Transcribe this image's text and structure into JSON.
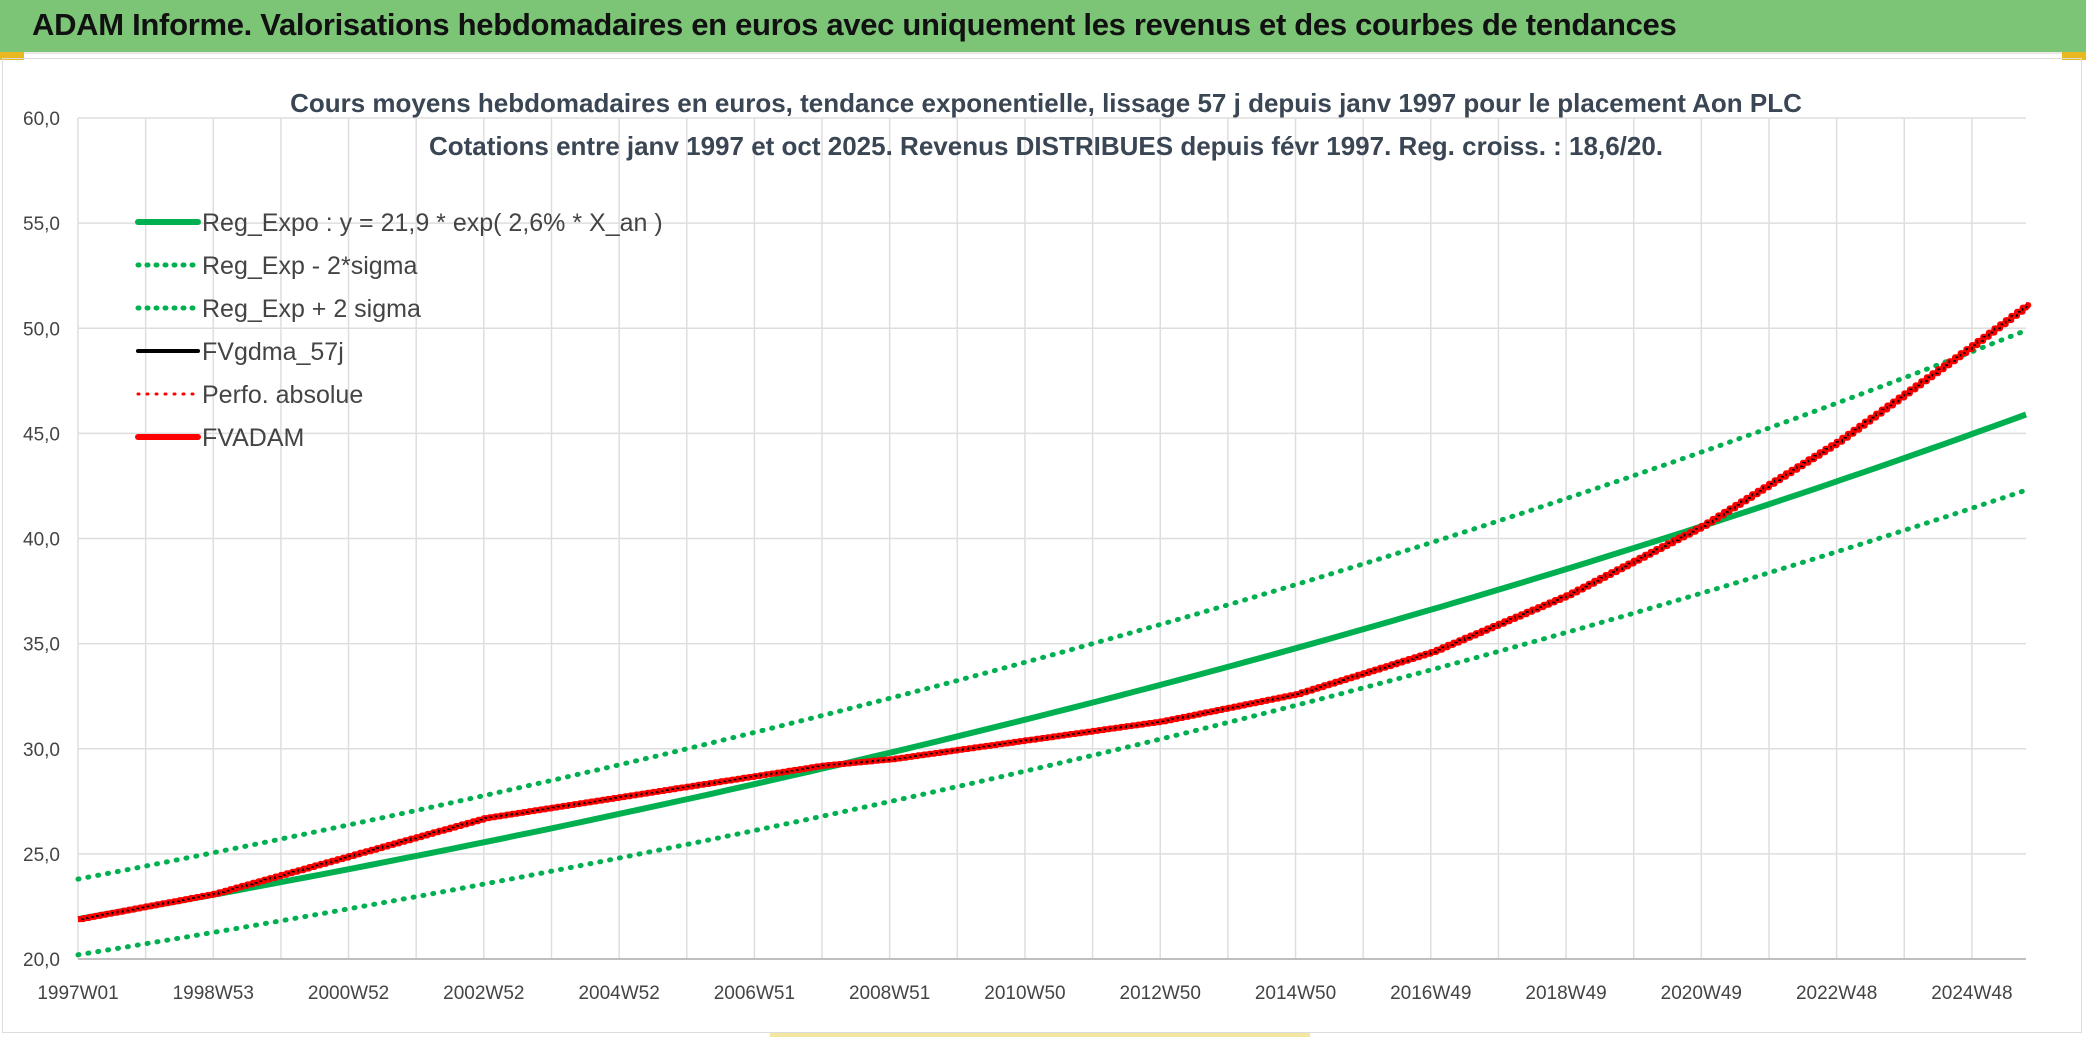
{
  "header": {
    "title": "ADAM Informe. Valorisations hebdomadaires en euros avec uniquement les revenus et des courbes de tendances"
  },
  "colors": {
    "header_bg": "#7cc576",
    "trend": "#00b050",
    "perf": "#ff0000",
    "gdma": "#000000"
  },
  "chart_data": {
    "type": "line",
    "title": "Cours moyens hebdomadaires en euros, tendance exponentielle, lissage 57 j depuis janv 1997 pour le placement Aon PLC",
    "subtitle": "Cotations entre janv 1997 et oct 2025. Revenus DISTRIBUES depuis févr 1997. Reg. croiss. : 18,6/20.",
    "xlabel": "",
    "ylabel": "",
    "x_start_year": 1997.0,
    "x_end_year": 2025.8,
    "x_ticks": [
      {
        "label": "1997W01",
        "year": 1997.0
      },
      {
        "label": "1998W53",
        "year": 1999.0
      },
      {
        "label": "2000W52",
        "year": 2001.0
      },
      {
        "label": "2002W52",
        "year": 2003.0
      },
      {
        "label": "2004W52",
        "year": 2005.0
      },
      {
        "label": "2006W51",
        "year": 2007.0
      },
      {
        "label": "2008W51",
        "year": 2009.0
      },
      {
        "label": "2010W50",
        "year": 2011.0
      },
      {
        "label": "2012W50",
        "year": 2013.0
      },
      {
        "label": "2014W50",
        "year": 2015.0
      },
      {
        "label": "2016W49",
        "year": 2017.0
      },
      {
        "label": "2018W49",
        "year": 2019.0
      },
      {
        "label": "2020W49",
        "year": 2021.0
      },
      {
        "label": "2022W48",
        "year": 2023.0
      },
      {
        "label": "2024W48",
        "year": 2025.0
      }
    ],
    "ylim": [
      20,
      60
    ],
    "y_ticks": [
      "20,0",
      "25,0",
      "30,0",
      "35,0",
      "40,0",
      "45,0",
      "50,0",
      "55,0",
      "60,0"
    ],
    "legend": [
      {
        "label": "Reg_Expo : y = 21,9 * exp( 2,6% *  X_an )",
        "color": "#00b050",
        "style": "solid",
        "width": 6
      },
      {
        "label": "Reg_Exp - 2*sigma",
        "color": "#00b050",
        "style": "dotted",
        "width": 5
      },
      {
        "label": "Reg_Exp + 2 sigma",
        "color": "#00b050",
        "style": "dotted",
        "width": 5
      },
      {
        "label": "FVgdma_57j",
        "color": "#000000",
        "style": "solid",
        "width": 4
      },
      {
        "label": "Perfo. absolue",
        "color": "#ff0000",
        "style": "dotted",
        "width": 3
      },
      {
        "label": "FVADAM",
        "color": "#ff0000",
        "style": "solid",
        "width": 6
      }
    ],
    "series": [
      {
        "name": "Reg_Expo",
        "x": [
          1997.0,
          2025.8
        ],
        "y": [
          21.9,
          45.9
        ],
        "model": "exp"
      },
      {
        "name": "Reg_Exp - 2*sigma",
        "x": [
          1997.0,
          2025.8
        ],
        "y": [
          20.2,
          42.3
        ],
        "model": "exp"
      },
      {
        "name": "Reg_Exp + 2 sigma",
        "x": [
          1997.0,
          2025.8
        ],
        "y": [
          23.8,
          49.9
        ],
        "model": "exp"
      },
      {
        "name": "FVADAM",
        "x": [
          1997.0,
          1999.0,
          2001.0,
          2003.0,
          2005.0,
          2007.0,
          2008.0,
          2009.0,
          2011.0,
          2013.0,
          2015.0,
          2017.0,
          2019.0,
          2021.0,
          2023.0,
          2025.0,
          2025.8
        ],
        "y": [
          21.9,
          23.1,
          24.9,
          26.7,
          27.7,
          28.7,
          29.2,
          29.5,
          30.4,
          31.3,
          32.6,
          34.6,
          37.3,
          40.6,
          44.6,
          49.2,
          51.1
        ]
      }
    ]
  }
}
